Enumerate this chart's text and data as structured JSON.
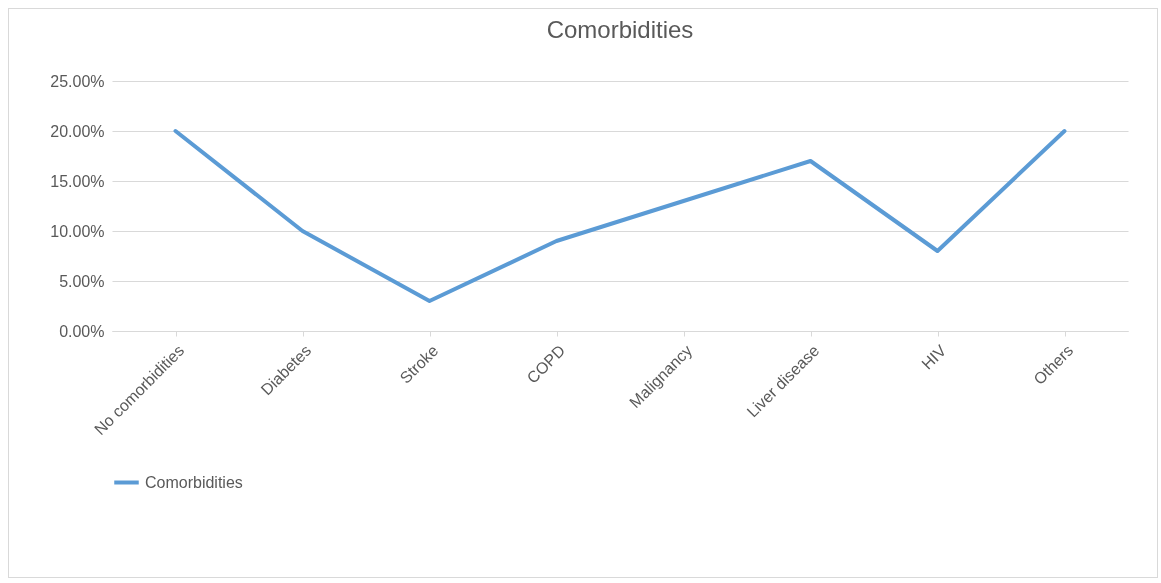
{
  "chart_data": {
    "type": "line",
    "title": "Comorbidities",
    "categories": [
      "No comorbidities",
      "Diabetes",
      "Stroke",
      "COPD",
      "Malignancy",
      "Liver disease",
      "HIV",
      "Others"
    ],
    "series": [
      {
        "name": "Comorbidities",
        "color": "#5b9bd5",
        "values": [
          20,
          10,
          3,
          9,
          13,
          17,
          8,
          20
        ]
      }
    ],
    "ylim": [
      0,
      25
    ],
    "yticks": [
      {
        "value": 0,
        "label": "0.00%"
      },
      {
        "value": 5,
        "label": "5.00%"
      },
      {
        "value": 10,
        "label": "10.00%"
      },
      {
        "value": 15,
        "label": "15.00%"
      },
      {
        "value": 20,
        "label": "20.00%"
      },
      {
        "value": 25,
        "label": "25.00%"
      }
    ],
    "grid": "y",
    "legend": "bottom",
    "marker": "none",
    "line_style": "solid"
  }
}
